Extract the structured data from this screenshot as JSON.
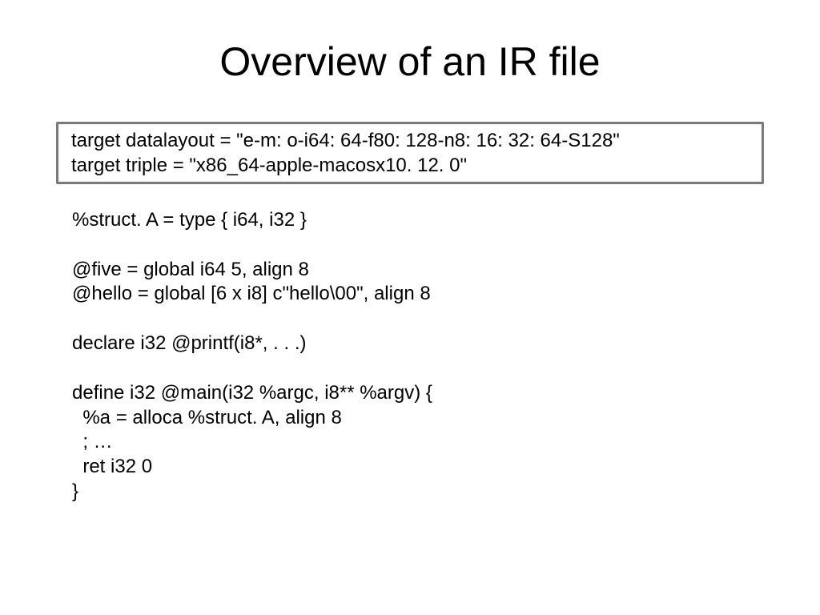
{
  "title": "Overview of an IR file",
  "highlight": {
    "line1": "target datalayout = \"e-m: o-i64: 64-f80: 128-n8: 16: 32: 64-S128\"",
    "line2": "target triple = \"x86_64-apple-macosx10. 12. 0\""
  },
  "code": {
    "l1": "%struct. A = type { i64, i32 }",
    "l2": "@five = global i64 5, align 8",
    "l3": "@hello = global [6 x i8] c\"hello\\00\", align 8",
    "l4": "declare i32 @printf(i8*, . . .)",
    "l5": "define i32 @main(i32 %argc, i8** %argv) {",
    "l6": "  %a = alloca %struct. A, align 8",
    "l7": "  ; …",
    "l8": "  ret i32 0",
    "l9": "}"
  },
  "style": {
    "background": "#ffffff",
    "text_color": "#000000",
    "title_fontsize": 50,
    "body_fontsize": 24,
    "box_border_color": "#7a7a7a",
    "box_border_width": 3
  }
}
